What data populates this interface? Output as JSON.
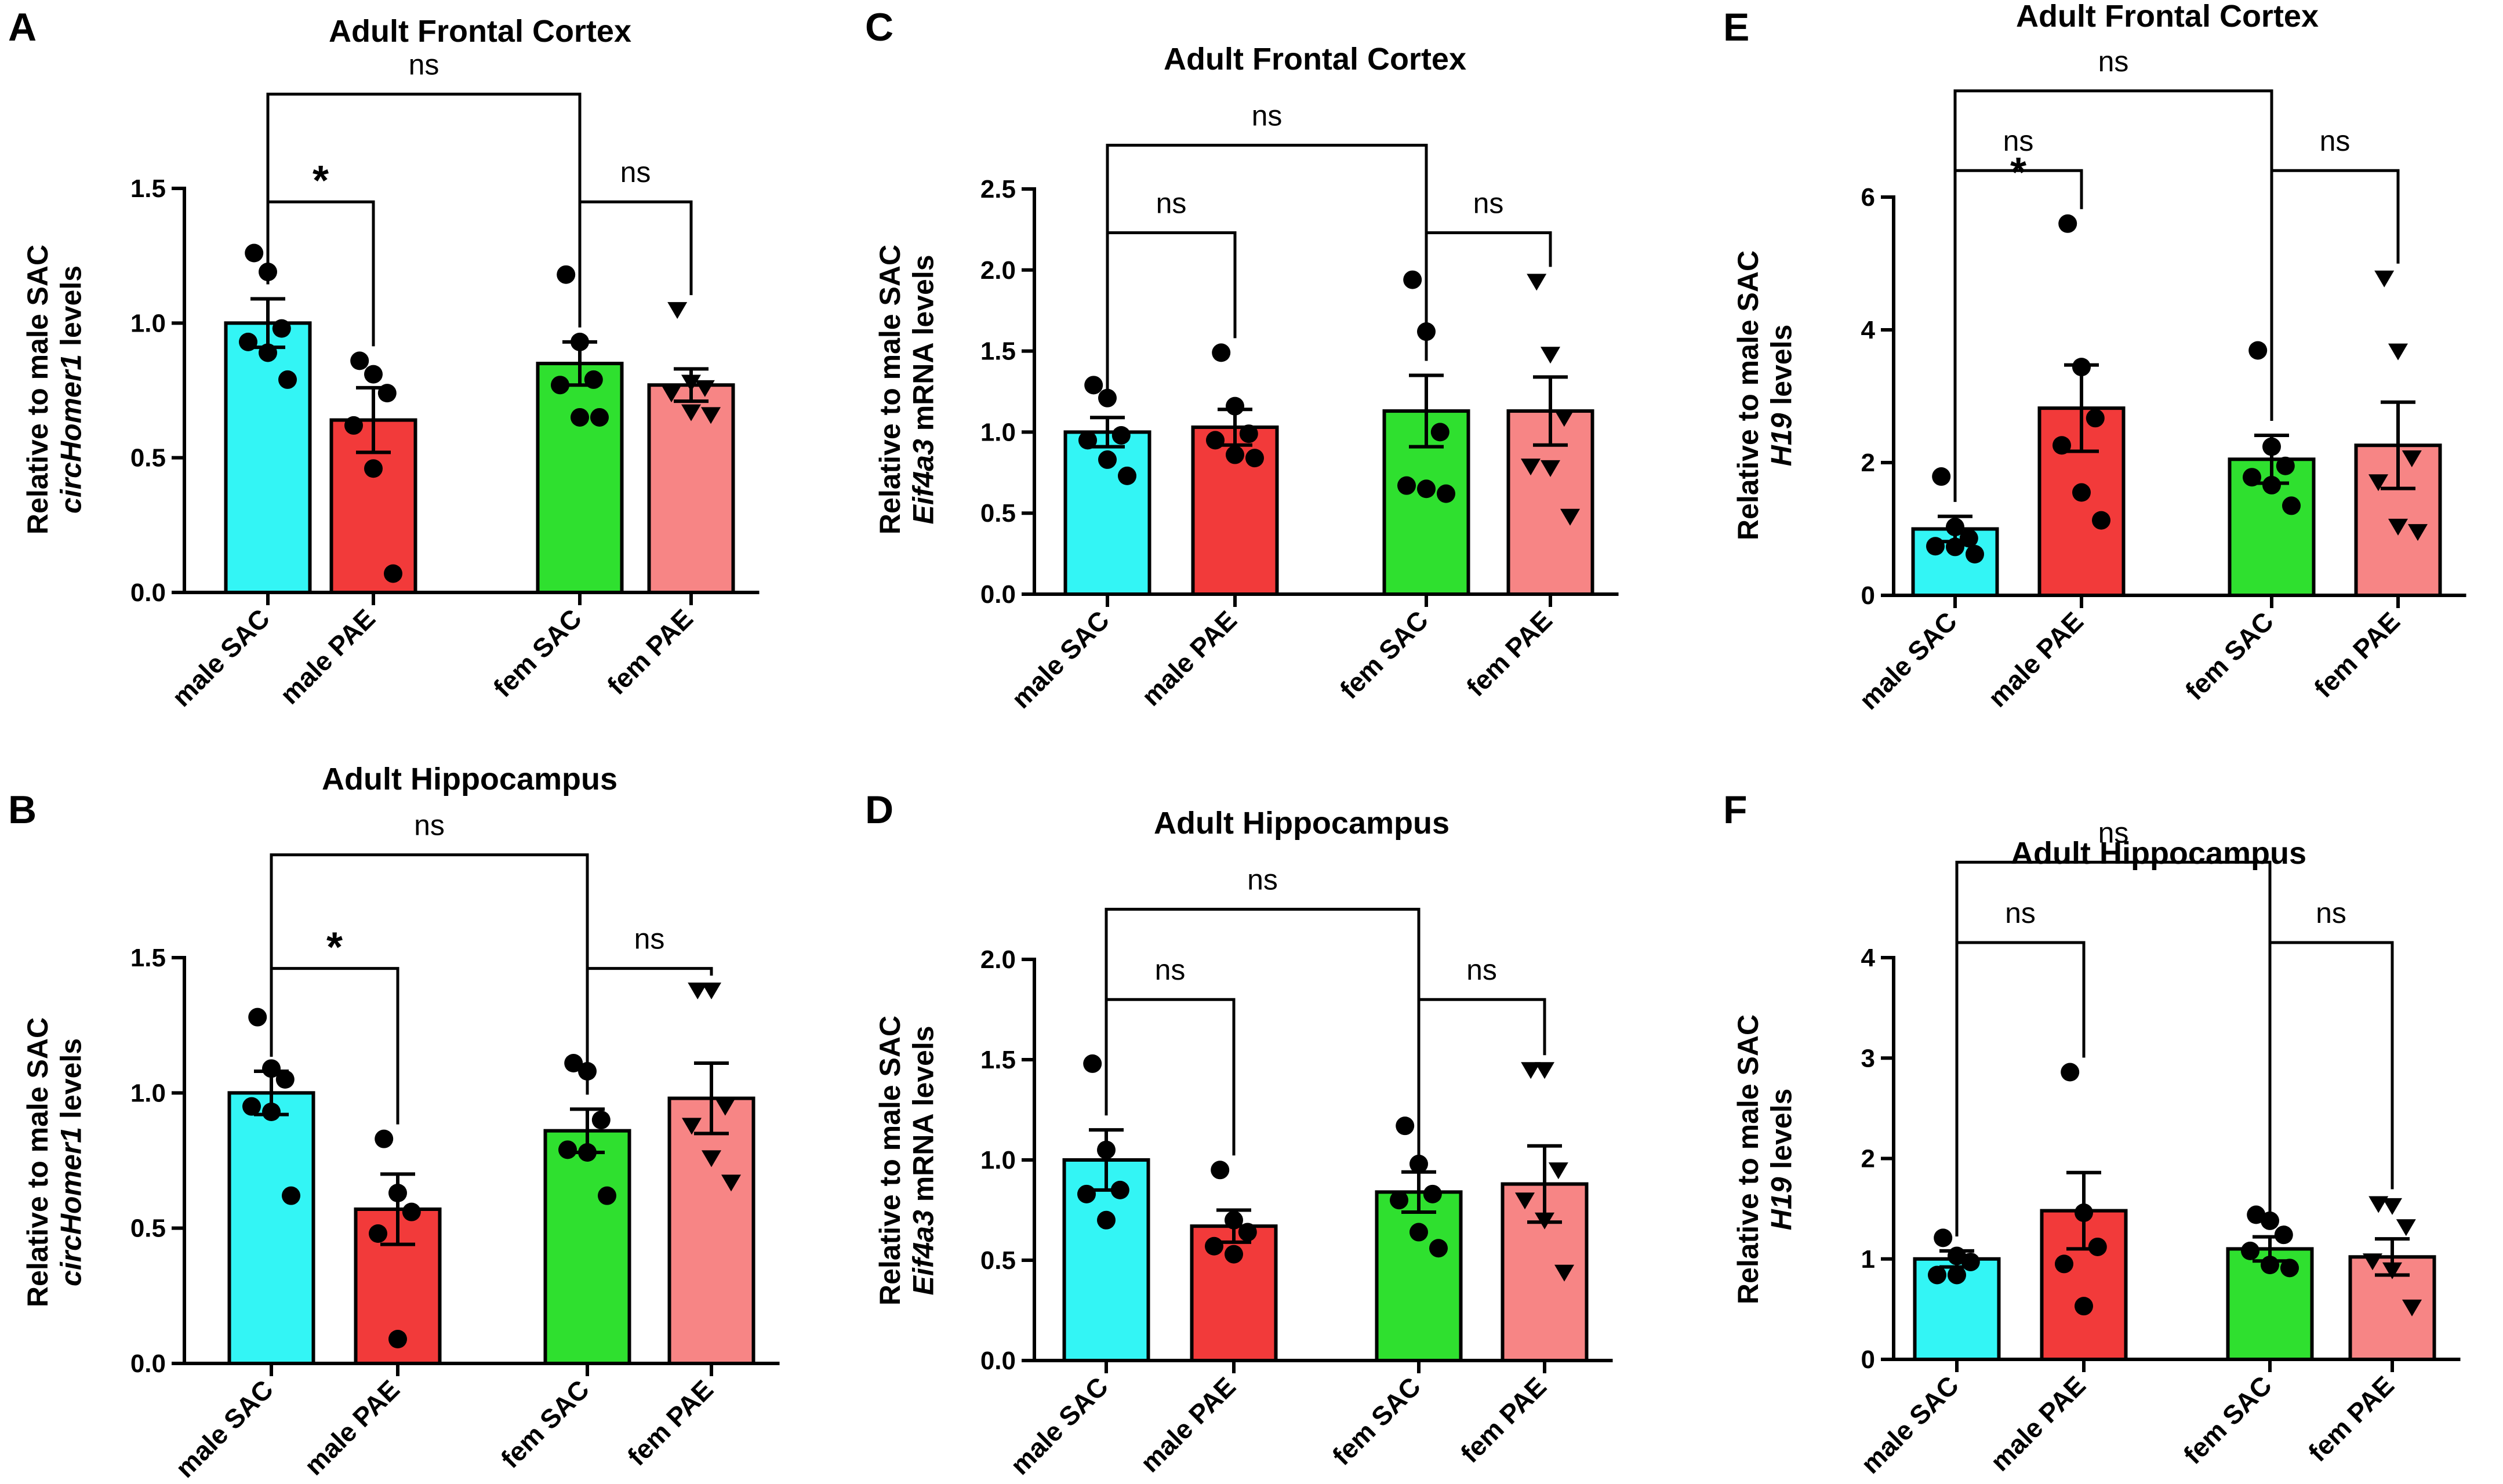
{
  "figure": {
    "colors": {
      "male SAC": "#33f5f5",
      "male PAE": "#f23a3a",
      "fem SAC": "#2fe02f",
      "fem PAE": "#f78585"
    }
  },
  "chart_data": [
    {
      "panel": "A",
      "type": "bar",
      "title": "Adult Frontal Cortex",
      "ylabel_line1": "Relative to male SAC",
      "ylabel_gene": "circHomer1",
      "ylabel_rest": " levels",
      "categories": [
        "male SAC",
        "male PAE",
        "fem SAC",
        "fem PAE"
      ],
      "ylim": [
        0,
        1.5
      ],
      "yticks": [
        0.0,
        0.5,
        1.0,
        1.5
      ],
      "ytick_labels": [
        "0.0",
        "0.5",
        "1.0",
        "1.5"
      ],
      "values": [
        1.0,
        0.64,
        0.85,
        0.77
      ],
      "sem": [
        0.09,
        0.12,
        0.08,
        0.06
      ],
      "points": [
        [
          1.26,
          1.19,
          0.98,
          0.93,
          0.89,
          0.79
        ],
        [
          0.86,
          0.81,
          0.74,
          0.62,
          0.46,
          0.07
        ],
        [
          1.18,
          0.93,
          0.79,
          0.77,
          0.65,
          0.65
        ],
        [
          1.05,
          0.78,
          0.76,
          0.74,
          0.67,
          0.66
        ]
      ],
      "comparisons": [
        {
          "from": 0,
          "to": 2,
          "label": "ns",
          "level": 1.85
        },
        {
          "from": 0,
          "to": 1,
          "label": "*",
          "level": 1.45
        },
        {
          "from": 2,
          "to": 3,
          "label": "ns",
          "level": 1.45
        }
      ]
    },
    {
      "panel": "B",
      "type": "bar",
      "title": "Adult Hippocampus",
      "ylabel_line1": "Relative to male SAC",
      "ylabel_gene": "circHomer1",
      "ylabel_rest": " levels",
      "categories": [
        "male SAC",
        "male PAE",
        "fem SAC",
        "fem PAE"
      ],
      "ylim": [
        0,
        1.5
      ],
      "yticks": [
        0.0,
        0.5,
        1.0,
        1.5
      ],
      "ytick_labels": [
        "0.0",
        "0.5",
        "1.0",
        "1.5"
      ],
      "values": [
        1.0,
        0.57,
        0.86,
        0.98
      ],
      "sem": [
        0.08,
        0.13,
        0.08,
        0.13
      ],
      "points": [
        [
          1.28,
          1.09,
          1.05,
          0.95,
          0.93,
          0.62
        ],
        [
          0.83,
          0.63,
          0.56,
          0.48,
          0.09
        ],
        [
          1.11,
          1.08,
          0.9,
          0.79,
          0.78,
          0.62
        ],
        [
          1.38,
          1.38,
          0.95,
          0.88,
          0.76,
          0.67
        ]
      ],
      "comparisons": [
        {
          "from": 0,
          "to": 2,
          "label": "ns",
          "level": 1.88
        },
        {
          "from": 0,
          "to": 1,
          "label": "*",
          "level": 1.46
        },
        {
          "from": 2,
          "to": 3,
          "label": "ns",
          "level": 1.46
        }
      ]
    },
    {
      "panel": "C",
      "type": "bar",
      "title": "Adult Frontal Cortex",
      "ylabel_line1": "Relative to male SAC",
      "ylabel_gene": "Eif4a3",
      "ylabel_rest": " mRNA levels",
      "categories": [
        "male SAC",
        "male PAE",
        "fem SAC",
        "fem PAE"
      ],
      "ylim": [
        0,
        2.5
      ],
      "yticks": [
        0.0,
        0.5,
        1.0,
        1.5,
        2.0,
        2.5
      ],
      "ytick_labels": [
        "0.0",
        "0.5",
        "1.0",
        "1.5",
        "2.0",
        "2.5"
      ],
      "values": [
        1.0,
        1.03,
        1.13,
        1.13
      ],
      "sem": [
        0.09,
        0.11,
        0.22,
        0.21
      ],
      "points": [
        [
          1.29,
          1.21,
          0.98,
          0.95,
          0.83,
          0.73
        ],
        [
          1.49,
          1.16,
          0.99,
          0.95,
          0.86,
          0.84
        ],
        [
          1.94,
          1.62,
          1.0,
          0.67,
          0.65,
          0.62
        ],
        [
          1.93,
          1.48,
          1.09,
          0.79,
          0.78,
          0.48
        ]
      ],
      "comparisons": [
        {
          "from": 0,
          "to": 2,
          "label": "ns",
          "level": 2.77
        },
        {
          "from": 0,
          "to": 1,
          "label": "ns",
          "level": 2.23
        },
        {
          "from": 2,
          "to": 3,
          "label": "ns",
          "level": 2.23
        }
      ]
    },
    {
      "panel": "D",
      "type": "bar",
      "title": "Adult Hippocampus",
      "ylabel_line1": "Relative to male SAC",
      "ylabel_gene": "Eif4a3",
      "ylabel_rest": " mRNA levels",
      "categories": [
        "male SAC",
        "male PAE",
        "fem SAC",
        "fem PAE"
      ],
      "ylim": [
        0,
        2.0
      ],
      "yticks": [
        0.0,
        0.5,
        1.0,
        1.5,
        2.0
      ],
      "ytick_labels": [
        "0.0",
        "0.5",
        "1.0",
        "1.5",
        "2.0"
      ],
      "values": [
        1.0,
        0.67,
        0.84,
        0.88
      ],
      "sem": [
        0.15,
        0.08,
        0.1,
        0.19
      ],
      "points": [
        [
          1.48,
          1.05,
          0.85,
          0.83,
          0.7
        ],
        [
          0.95,
          0.7,
          0.64,
          0.57,
          0.53
        ],
        [
          1.17,
          0.98,
          0.83,
          0.8,
          0.64,
          0.56
        ],
        [
          1.45,
          1.45,
          0.95,
          0.8,
          0.7,
          0.44
        ]
      ],
      "comparisons": [
        {
          "from": 0,
          "to": 2,
          "label": "ns",
          "level": 2.25
        },
        {
          "from": 0,
          "to": 1,
          "label": "ns",
          "level": 1.8
        },
        {
          "from": 2,
          "to": 3,
          "label": "ns",
          "level": 1.8
        }
      ]
    },
    {
      "panel": "E",
      "type": "bar",
      "title": "Adult Frontal Cortex",
      "ylabel_line1": "Relative to male SAC",
      "ylabel_gene": "H19",
      "ylabel_rest": " levels",
      "categories": [
        "male SAC",
        "male PAE",
        "fem SAC",
        "fem PAE"
      ],
      "ylim": [
        0,
        6
      ],
      "yticks": [
        0,
        2,
        4,
        6
      ],
      "ytick_labels": [
        "0",
        "2",
        "4",
        "6"
      ],
      "values": [
        1.0,
        2.82,
        2.05,
        2.26
      ],
      "sem": [
        0.19,
        0.65,
        0.36,
        0.65
      ],
      "points": [
        [
          1.79,
          1.03,
          0.86,
          0.74,
          0.73,
          0.62
        ],
        [
          5.6,
          3.44,
          2.67,
          2.26,
          1.55,
          1.13
        ],
        [
          3.69,
          2.24,
          1.95,
          1.78,
          1.66,
          1.35
        ],
        [
          4.78,
          3.68,
          2.07,
          1.71,
          1.04,
          0.96
        ]
      ],
      "comparisons": [
        {
          "from": 0,
          "to": 2,
          "label": "ns",
          "level": 7.6
        },
        {
          "from": 0,
          "to": 1,
          "label": "ns",
          "level": 6.4
        },
        {
          "from": 2,
          "to": 3,
          "label": "ns",
          "level": 6.4
        },
        {
          "from": 0,
          "to": 1,
          "label": "*",
          "level": 6.4,
          "mid": true
        }
      ]
    },
    {
      "panel": "F",
      "type": "bar",
      "title": "Adult Hippocampus",
      "ylabel_line1": "Relative to male SAC",
      "ylabel_gene": "H19",
      "ylabel_rest": " levels",
      "categories": [
        "male SAC",
        "male PAE",
        "fem SAC",
        "fem PAE"
      ],
      "ylim": [
        0,
        4
      ],
      "yticks": [
        0,
        1,
        2,
        3,
        4
      ],
      "ytick_labels": [
        "0",
        "1",
        "2",
        "3",
        "4"
      ],
      "values": [
        1.0,
        1.48,
        1.1,
        1.02
      ],
      "sem": [
        0.08,
        0.38,
        0.12,
        0.18
      ],
      "points": [
        [
          1.21,
          1.03,
          0.97,
          0.84,
          0.84
        ],
        [
          2.86,
          1.46,
          1.12,
          0.95,
          0.53
        ],
        [
          1.44,
          1.38,
          1.24,
          1.08,
          0.94,
          0.91
        ],
        [
          1.55,
          1.53,
          1.32,
          0.98,
          0.89,
          0.52
        ]
      ],
      "comparisons": [
        {
          "from": 0,
          "to": 2,
          "label": "ns",
          "level": 4.95
        },
        {
          "from": 0,
          "to": 1,
          "label": "ns",
          "level": 4.15
        },
        {
          "from": 2,
          "to": 3,
          "label": "ns",
          "level": 4.15
        }
      ]
    }
  ]
}
